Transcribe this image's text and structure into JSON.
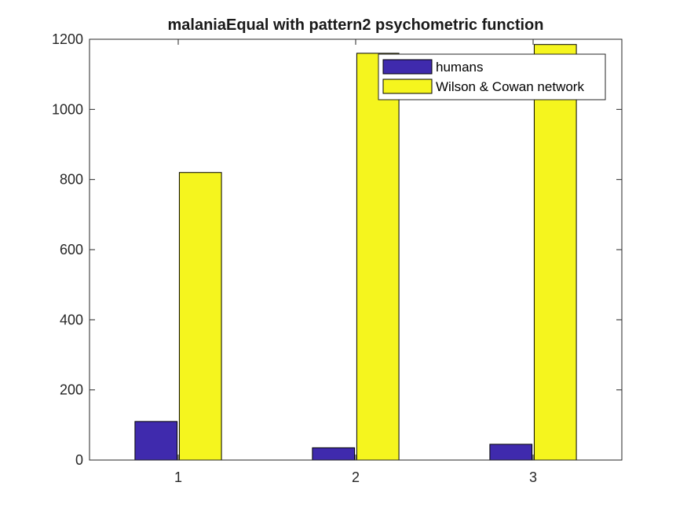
{
  "chart_data": {
    "type": "bar",
    "title": "malaniaEqual with pattern2 psychometric function",
    "xlabel": "",
    "ylabel": "",
    "categories": [
      "1",
      "2",
      "3"
    ],
    "ylim": [
      0,
      1200
    ],
    "yticks": [
      0,
      200,
      400,
      600,
      800,
      1000,
      1200
    ],
    "grid": false,
    "legend_position": "top-right",
    "series": [
      {
        "name": "humans",
        "color": "#3f2aad",
        "values": [
          110,
          35,
          45
        ]
      },
      {
        "name": "Wilson & Cowan network",
        "color": "#f5f51e",
        "values": [
          820,
          1160,
          1185
        ]
      }
    ]
  }
}
